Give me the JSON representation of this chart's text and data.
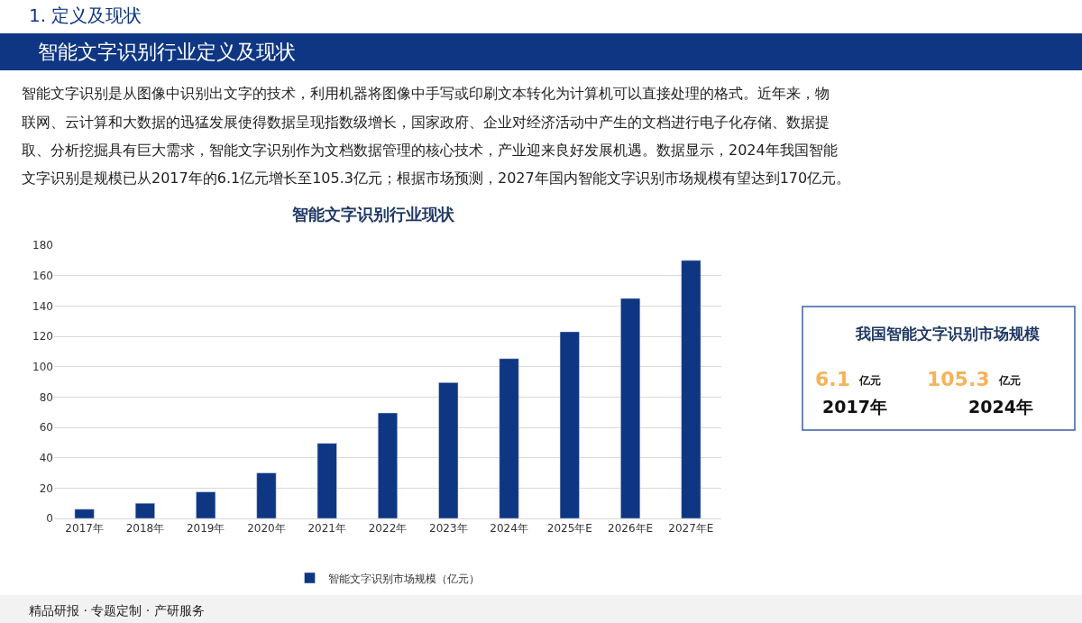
{
  "chart_data": {
    "type": "bar",
    "title": "智能文字识别行业现状",
    "categories": [
      "2017年",
      "2018年",
      "2019年",
      "2020年",
      "2021年",
      "2022年",
      "2023年",
      "2024年",
      "2025年E",
      "2026年E",
      "2027年E"
    ],
    "series": [
      {
        "name": "智能文字识别市场规模（亿元）",
        "color": "#0e3682",
        "values": [
          6.1,
          10,
          17.5,
          30,
          49.5,
          69.5,
          89.5,
          105.3,
          123,
          145,
          170
        ]
      }
    ],
    "ylim": [
      0,
      180
    ],
    "yticks": [
      0,
      20,
      40,
      60,
      80,
      100,
      120,
      140,
      160,
      180
    ],
    "grid": "y",
    "legend": "bottom",
    "annotations": [
      "1. 定义及现状",
      "智能文字识别行业定义及现状",
      "智能文字识别是从图像中识别出文字的技术，利用机器将图像中手写或印刷文本转化为计算机可以直接处理的格式。近年来，物",
      "联网、云计算和大数据的迅猛发展使得数据呈现指数级增长，国家政府、企业对经济活动中产生的文档进行电子化存储、数据提",
      "取、分析挖掘具有巨大需求，智能文字识别作为文档数据管理的核心技术，产业迎来良好发展机遇。数据显示，2024年我国智能",
      "文字识别是规模已从2017年的6.1亿元增长至105.3亿元；根据市场预测，2027年国内智能文字识别市场规模有望达到170亿元。",
      "我国智能文字识别市场规模",
      "6.1",
      "亿元",
      "2017年",
      "105.3",
      "亿元",
      "2024年",
      "精品研报 · 专题定制 · 产研服务"
    ]
  }
}
